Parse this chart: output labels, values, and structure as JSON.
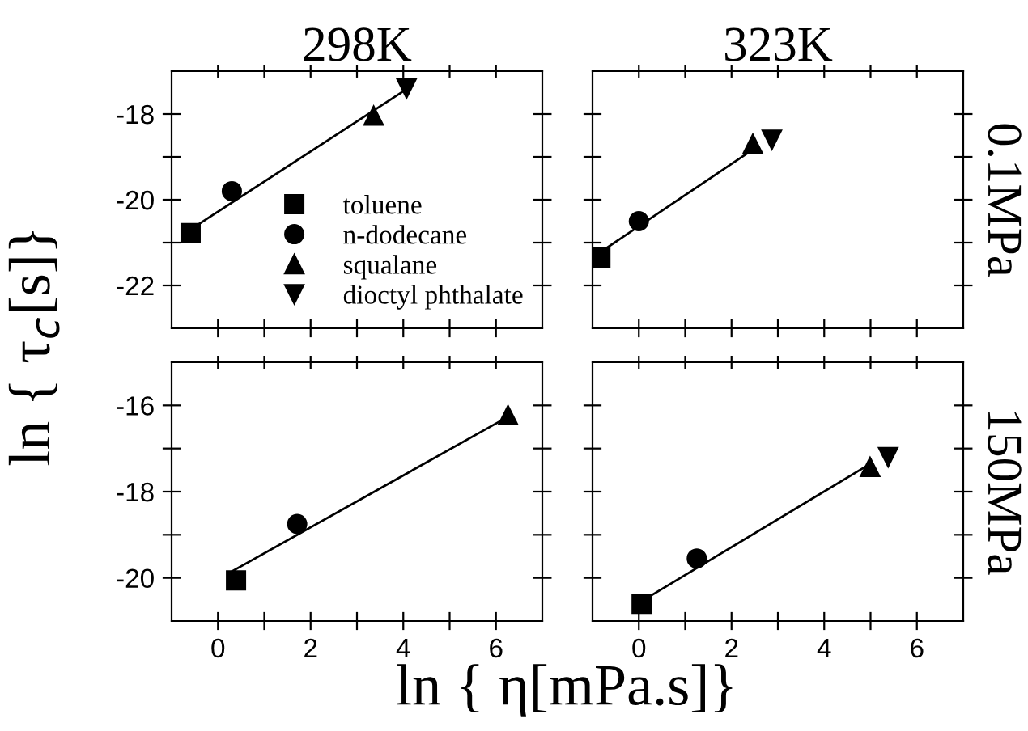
{
  "chart_data": [
    {
      "type": "scatter",
      "title": "298K",
      "ylabel": "ln { τ$_{c}$[s]}",
      "xlim": [
        -1,
        7
      ],
      "xticks": [
        {
          "value": 0,
          "label": null
        },
        {
          "value": 1,
          "label": null
        },
        {
          "value": 2,
          "label": null
        },
        {
          "value": 3,
          "label": null
        },
        {
          "value": 4,
          "label": null
        },
        {
          "value": 5,
          "label": null
        },
        {
          "value": 6,
          "label": null
        }
      ],
      "ylim": [
        -23,
        -17
      ],
      "yticks": [
        -22,
        {
          "value": -21,
          "label": null
        },
        -20,
        {
          "value": -19,
          "label": null
        },
        -18
      ],
      "tick_labels": "y",
      "legend": "bottom right",
      "grid": false,
      "series": [
        {
          "name": "toluene",
          "color": "#000000",
          "marker": "square",
          "x": [
            -0.59
          ],
          "values": [
            -20.78
          ]
        },
        {
          "name": "n-dodecane",
          "color": "#000000",
          "marker": "circle",
          "x": [
            0.3
          ],
          "values": [
            -19.8
          ]
        },
        {
          "name": "squalane",
          "color": "#000000",
          "marker": "triangle",
          "x": [
            3.36
          ],
          "values": [
            -18.04
          ]
        },
        {
          "name": "dioctyl phthalate",
          "color": "#000000",
          "marker": "triangle_down",
          "x": [
            4.07
          ],
          "values": [
            -17.4
          ]
        },
        {
          "type": "line",
          "color": "#000000",
          "marker": "none",
          "line_style": "solid",
          "x": [
            -0.6,
            4.1
          ],
          "values": [
            -20.7,
            -17.4
          ]
        }
      ]
    },
    {
      "type": "scatter",
      "title": "323K",
      "annotations": [
        "0.1MPa"
      ],
      "xlim": [
        -1,
        7
      ],
      "xticks": [
        {
          "value": 0,
          "label": null
        },
        {
          "value": 1,
          "label": null
        },
        {
          "value": 2,
          "label": null
        },
        {
          "value": 3,
          "label": null
        },
        {
          "value": 4,
          "label": null
        },
        {
          "value": 5,
          "label": null
        },
        {
          "value": 6,
          "label": null
        }
      ],
      "ylim": [
        -23,
        -17
      ],
      "yticks": [
        {
          "value": -22,
          "label": null
        },
        {
          "value": -21,
          "label": null
        },
        {
          "value": -20,
          "label": null
        },
        {
          "value": -19,
          "label": null
        },
        {
          "value": -18,
          "label": null
        }
      ],
      "tick_labels": false,
      "grid": false,
      "series": [
        {
          "color": "#000000",
          "marker": "square",
          "x": [
            -0.83
          ],
          "values": [
            -21.35
          ]
        },
        {
          "color": "#000000",
          "marker": "circle",
          "x": [
            0.0
          ],
          "values": [
            -20.5
          ]
        },
        {
          "color": "#000000",
          "marker": "triangle",
          "x": [
            2.46
          ],
          "values": [
            -18.7
          ]
        },
        {
          "color": "#000000",
          "marker": "triangle_down",
          "x": [
            2.87
          ],
          "values": [
            -18.6
          ]
        },
        {
          "type": "line",
          "color": "#000000",
          "marker": "none",
          "line_style": "solid",
          "x": [
            -0.8,
            2.5
          ],
          "values": [
            -21.2,
            -18.8
          ]
        }
      ]
    },
    {
      "type": "scatter",
      "xlabel": "ln { η[mPa.s]}",
      "xlim": [
        -1,
        7
      ],
      "xticks": [
        0,
        {
          "value": 1,
          "label": null
        },
        2,
        {
          "value": 3,
          "label": null
        },
        4,
        {
          "value": 5,
          "label": null
        },
        6
      ],
      "ylim": [
        -21,
        -15
      ],
      "yticks": [
        -20,
        {
          "value": -19,
          "label": null
        },
        -18,
        {
          "value": -17,
          "label": null
        },
        -16
      ],
      "grid": false,
      "series": [
        {
          "color": "#000000",
          "marker": "square",
          "x": [
            0.39
          ],
          "values": [
            -20.06
          ]
        },
        {
          "color": "#000000",
          "marker": "circle",
          "x": [
            1.71
          ],
          "values": [
            -18.75
          ]
        },
        {
          "color": "#000000",
          "marker": "triangle",
          "x": [
            6.26
          ],
          "values": [
            -16.23
          ]
        },
        {
          "type": "line",
          "color": "#000000",
          "marker": "none",
          "line_style": "solid",
          "x": [
            0.3,
            6.2
          ],
          "values": [
            -19.85,
            -16.3
          ]
        }
      ]
    },
    {
      "type": "scatter",
      "annotations": [
        "150MPa"
      ],
      "xlim": [
        -1,
        7
      ],
      "xticks": [
        0,
        {
          "value": 1,
          "label": null
        },
        2,
        {
          "value": 3,
          "label": null
        },
        4,
        {
          "value": 5,
          "label": null
        },
        6
      ],
      "ylim": [
        -21,
        -15
      ],
      "yticks": [
        {
          "value": -20,
          "label": null
        },
        {
          "value": -19,
          "label": null
        },
        {
          "value": -18,
          "label": null
        },
        {
          "value": -17,
          "label": null
        },
        {
          "value": -16,
          "label": null
        }
      ],
      "tick_labels": "x",
      "grid": false,
      "series": [
        {
          "color": "#000000",
          "marker": "square",
          "x": [
            0.06
          ],
          "values": [
            -20.6
          ]
        },
        {
          "color": "#000000",
          "marker": "circle",
          "x": [
            1.25
          ],
          "values": [
            -19.55
          ]
        },
        {
          "color": "#000000",
          "marker": "triangle",
          "x": [
            4.99
          ],
          "values": [
            -17.43
          ]
        },
        {
          "color": "#000000",
          "marker": "triangle_down",
          "x": [
            5.38
          ],
          "values": [
            -17.2
          ]
        },
        {
          "type": "line",
          "color": "#000000",
          "marker": "none",
          "line_style": "solid",
          "x": [
            0.2,
            5.0
          ],
          "values": [
            -20.45,
            -17.35
          ]
        }
      ]
    }
  ]
}
